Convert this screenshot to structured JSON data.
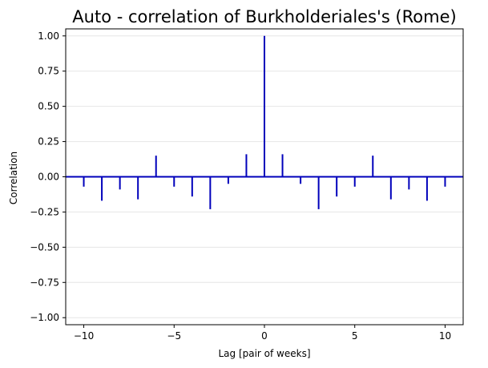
{
  "chart_data": {
    "type": "bar",
    "title": "Auto - correlation of Burkholderiales's (Rome)",
    "xlabel": "Lag [pair of weeks]",
    "ylabel": "Correlation",
    "xlim": [
      -11,
      11
    ],
    "ylim": [
      -1.05,
      1.05
    ],
    "x_ticks": [
      -10,
      -5,
      0,
      5,
      10
    ],
    "x_tick_labels": [
      "−10",
      "−5",
      "0",
      "5",
      "10"
    ],
    "y_ticks": [
      -1.0,
      -0.75,
      -0.5,
      -0.25,
      0.0,
      0.25,
      0.5,
      0.75,
      1.0
    ],
    "y_tick_labels": [
      "−1.00",
      "−0.75",
      "−0.50",
      "−0.25",
      "0.00",
      "0.25",
      "0.50",
      "0.75",
      "1.00"
    ],
    "grid": "horizontal",
    "series": [
      {
        "lags": [
          -10,
          -9,
          -8,
          -7,
          -6,
          -5,
          -4,
          -3,
          -2,
          -1,
          0,
          1,
          2,
          3,
          4,
          5,
          6,
          7,
          8,
          9,
          10
        ],
        "values": [
          -0.07,
          -0.17,
          -0.09,
          -0.16,
          0.15,
          -0.07,
          -0.14,
          -0.23,
          -0.05,
          0.16,
          1.0,
          0.16,
          -0.05,
          -0.23,
          -0.14,
          -0.07,
          0.15,
          -0.16,
          -0.09,
          -0.17,
          -0.07
        ]
      }
    ],
    "colors": {
      "stems": "#0000bb",
      "baseline": "#0000bb",
      "grid": "#e6e6e6"
    }
  }
}
